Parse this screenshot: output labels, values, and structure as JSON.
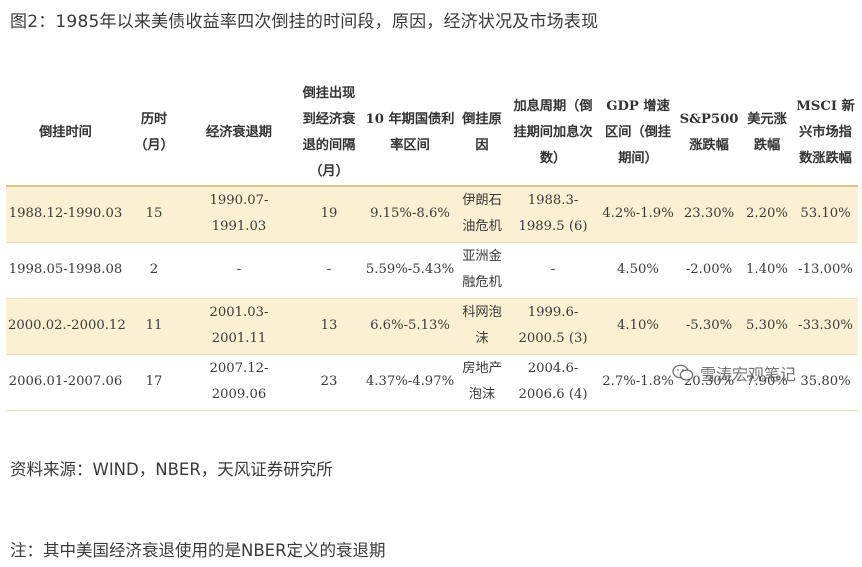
{
  "title": "图2：1985年以来美债收益率四次倒挂的时间段，原因，经济状况及市场表现",
  "table": {
    "headers": [
      "倒挂时间",
      "历时（月）",
      "经济衰退期",
      "倒挂出现到经济衰退的间隔（月）",
      "10 年期国债利率区间",
      "倒挂原因",
      "加息周期（倒挂期间加息次数）",
      "GDP 增速区间（倒挂期间）",
      "S&P500 涨跌幅",
      "美元涨跌幅",
      "MSCI 新兴市场指数涨跌幅"
    ],
    "rows": [
      [
        "1988.12-1990.03",
        "15",
        "1990.07-1991.03",
        "19",
        "9.15%-8.6%",
        "伊朗石油危机",
        "1988.3-1989.5 (6)",
        "4.2%-1.9%",
        "23.30%",
        "2.20%",
        "53.10%"
      ],
      [
        "1998.05-1998.08",
        "2",
        "-",
        "-",
        "5.59%-5.43%",
        "亚洲金融危机",
        "-",
        "4.50%",
        "-2.00%",
        "1.40%",
        "-13.00%"
      ],
      [
        "2000.02.-2000.12",
        "11",
        "2001.03-2001.11",
        "13",
        "6.6%-5.13%",
        "科网泡沫",
        "1999.6-2000.5 (3)",
        "4.10%",
        "-5.30%",
        "5.30%",
        "-33.30%"
      ],
      [
        "2006.01-2007.06",
        "17",
        "2007.12-2009.06",
        "23",
        "4.37%-4.97%",
        "房地产泡沫",
        "2004.6-2006.6 (4)",
        "2.7%-1.8%",
        "20.30%",
        "7.90%",
        "35.80%"
      ]
    ]
  },
  "source": "资料来源：WIND，NBER，天风证券研究所",
  "note": "注：其中美国经济衰退使用的是NBER定义的衰退期",
  "watermark": "雪涛宏观笔记"
}
